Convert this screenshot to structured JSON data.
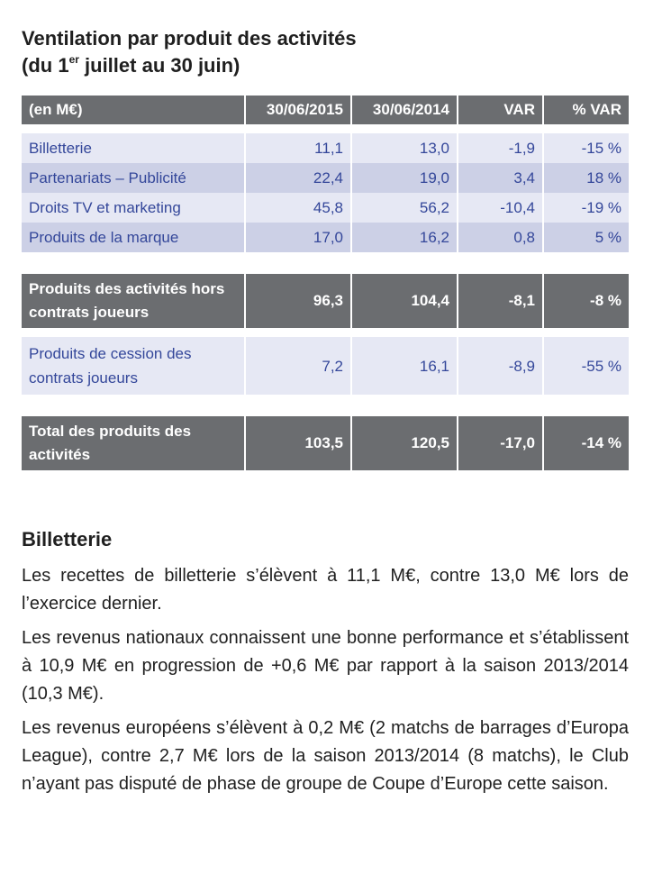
{
  "title": {
    "line1": "Ventilation par produit des activités",
    "line2_pre": "(du 1",
    "line2_sup": "er",
    "line2_post": " juillet au 30 juin)"
  },
  "table": {
    "headers": [
      "(en M€)",
      "30/06/2015",
      "30/06/2014",
      "VAR",
      "% VAR"
    ],
    "rows": [
      [
        "Billetterie",
        "11,1",
        "13,0",
        "-1,9",
        "-15 %"
      ],
      [
        "Partenariats – Publicité",
        "22,4",
        "19,0",
        "3,4",
        "18 %"
      ],
      [
        "Droits TV et marketing",
        "45,8",
        "56,2",
        "-10,4",
        "-19 %"
      ],
      [
        "Produits de la marque",
        "17,0",
        "16,2",
        "0,8",
        "5 %"
      ]
    ],
    "subtotal": [
      "Produits des activités hors contrats joueurs",
      "96,3",
      "104,4",
      "-8,1",
      "-8 %"
    ],
    "player_sales": [
      "Produits de cession des contrats joueurs",
      "7,2",
      "16,1",
      "-8,9",
      "-55 %"
    ],
    "total": [
      "Total des produits des activités",
      "103,5",
      "120,5",
      "-17,0",
      "-14 %"
    ]
  },
  "section": {
    "heading": "Billetterie",
    "paragraphs": [
      "Les recettes de billetterie s’élèvent à 11,1 M€, contre 13,0 M€ lors de l’exercice dernier.",
      "Les revenus nationaux connaissent une bonne performance et s’établissent à 10,9 M€ en progression de +0,6 M€ par rapport à la saison 2013/2014 (10,3 M€).",
      "Les revenus européens s’élèvent à 0,2 M€ (2 matchs de barrages d’Europa League), contre 2,7 M€ lors de la saison 2013/2014 (8 matchs), le Club n’ayant pas disputé de phase de groupe de Coupe d’Europe cette saison."
    ]
  }
}
